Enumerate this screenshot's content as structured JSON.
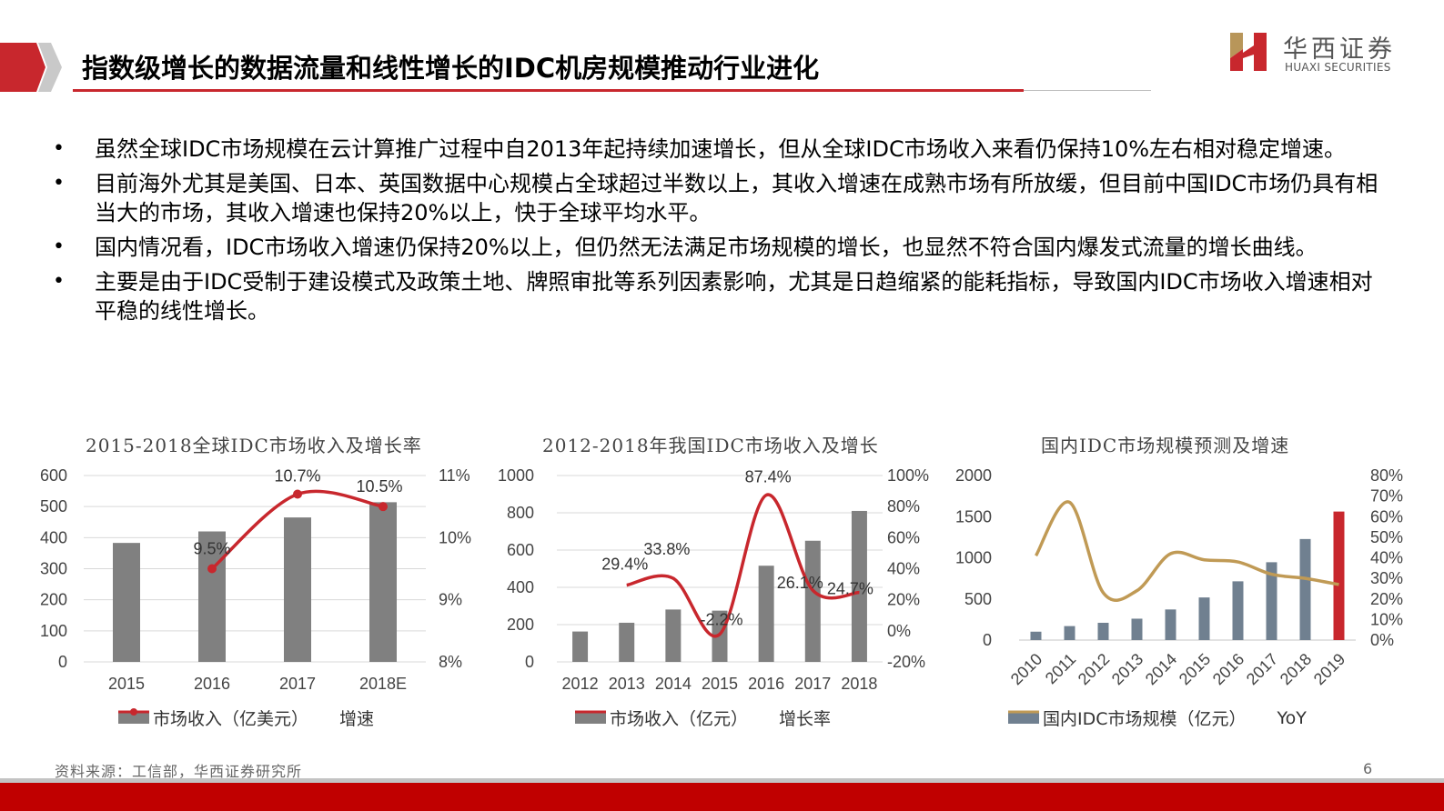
{
  "header": {
    "title": "指数级增长的数据流量和线性增长的IDC机房规模推动行业进化",
    "logo_cn": "华西证券",
    "logo_en": "HUAXI SECURITIES"
  },
  "bullets": [
    "虽然全球IDC市场规模在云计算推广过程中自2013年起持续加速增长，但从全球IDC市场收入来看仍保持10%左右相对稳定增速。",
    "目前海外尤其是美国、日本、英国数据中心规模占全球超过半数以上，其收入增速在成熟市场有所放缓，但目前中国IDC市场仍具有相当大的市场，其收入增速也保持20%以上，快于全球平均水平。",
    "国内情况看，IDC市场收入增速仍保持20%以上，但仍然无法满足市场规模的增长，也显然不符合国内爆发式流量的增长曲线。",
    "主要是由于IDC受制于建设模式及政策土地、牌照审批等系列因素影响，尤其是日趋缩紧的能耗指标，导致国内IDC市场收入增速相对平稳的线性增长。"
  ],
  "bullet_marker": "•",
  "chart_data": [
    {
      "type": "bar+line",
      "title": "2015-2018全球IDC市场收入及增长率",
      "categories": [
        "2015",
        "2016",
        "2017",
        "2018E"
      ],
      "series": [
        {
          "name": "市场收入（亿美元）",
          "type": "bar",
          "axis": "left",
          "color": "#808080",
          "values": [
            383,
            420,
            465,
            514
          ]
        },
        {
          "name": "增速",
          "type": "line",
          "axis": "right",
          "color": "#c8272d",
          "values": [
            null,
            9.5,
            10.7,
            10.5
          ],
          "labels": [
            "",
            "9.5%",
            "10.7%",
            "10.5%"
          ]
        }
      ],
      "y_left": {
        "min": 0,
        "max": 600,
        "ticks": [
          "0",
          "100",
          "200",
          "300",
          "400",
          "500",
          "600"
        ]
      },
      "y_right": {
        "min": 8,
        "max": 11,
        "ticks": [
          "8%",
          "9%",
          "10%",
          "11%"
        ]
      },
      "grid": true,
      "legend_position": "bottom"
    },
    {
      "type": "bar+line",
      "title": "2012-2018年我国IDC市场收入及增长",
      "categories": [
        "2012",
        "2013",
        "2014",
        "2015",
        "2016",
        "2017",
        "2018"
      ],
      "series": [
        {
          "name": "市场收入（亿元）",
          "type": "bar",
          "axis": "left",
          "color": "#808080",
          "values": [
            163,
            210,
            281,
            275,
            516,
            650,
            810
          ]
        },
        {
          "name": "增长率",
          "type": "line",
          "axis": "right",
          "color": "#c8272d",
          "values": [
            null,
            29.4,
            33.8,
            -2.2,
            87.4,
            26.1,
            24.7
          ],
          "labels": [
            "",
            "29.4%",
            "33.8%",
            "-2.2%",
            "87.4%",
            "26.1%",
            "24.7%"
          ]
        }
      ],
      "y_left": {
        "min": 0,
        "max": 1000,
        "ticks": [
          "0",
          "200",
          "400",
          "600",
          "800",
          "1000"
        ]
      },
      "y_right": {
        "min": -20,
        "max": 100,
        "ticks": [
          "-20%",
          "0%",
          "20%",
          "40%",
          "60%",
          "80%",
          "100%"
        ]
      },
      "grid": true,
      "legend_position": "bottom"
    },
    {
      "type": "bar+line",
      "title": "国内IDC市场规模预测及增速",
      "categories": [
        "2010",
        "2011",
        "2012",
        "2013",
        "2014",
        "2015",
        "2016",
        "2017",
        "2018",
        "2019"
      ],
      "series": [
        {
          "name": "国内IDC市场规模（亿元）",
          "type": "bar",
          "axis": "left",
          "color": "#708090",
          "highlight_last_color": "#c8272d",
          "values": [
            102,
            170,
            210,
            260,
            372,
            518,
            714,
            946,
            1228,
            1562
          ]
        },
        {
          "name": "YoY",
          "type": "line",
          "axis": "right",
          "color": "#c09a55",
          "values": [
            41,
            67,
            23,
            24,
            42,
            39,
            38,
            32,
            30,
            27
          ]
        }
      ],
      "y_left": {
        "min": 0,
        "max": 2000,
        "ticks": [
          "0",
          "500",
          "1000",
          "1500",
          "2000"
        ]
      },
      "y_right": {
        "min": 0,
        "max": 80,
        "ticks": [
          "0%",
          "10%",
          "20%",
          "30%",
          "40%",
          "50%",
          "60%",
          "70%",
          "80%"
        ]
      },
      "grid": false,
      "legend_position": "bottom"
    }
  ],
  "footer": {
    "source": "资料来源：工信部，华西证券研究所",
    "page_number": "6"
  }
}
